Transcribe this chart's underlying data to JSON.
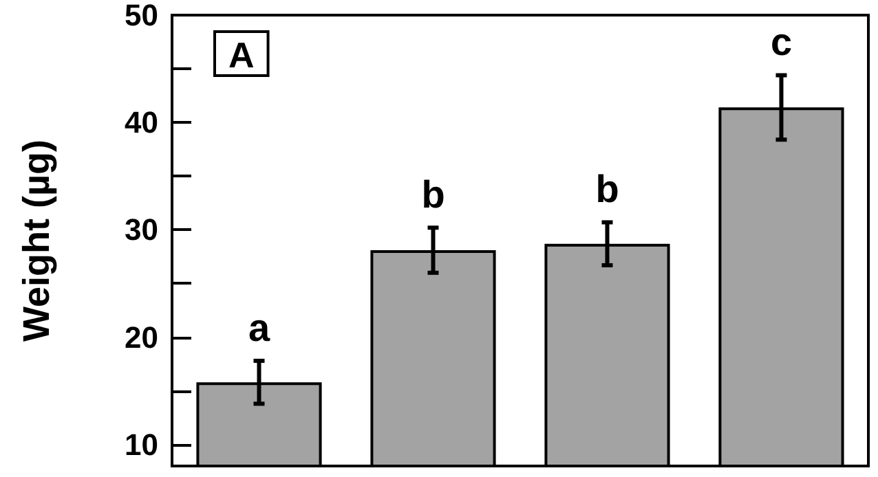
{
  "chart_data": {
    "type": "bar",
    "ylabel": "Weight (µg)",
    "categories": [
      null,
      null,
      null,
      null
    ],
    "color": "#a3a3a3",
    "values": [
      15.8,
      28.1,
      28.7,
      41.4
    ],
    "errors": [
      2.0,
      2.1,
      2.0,
      3.0
    ],
    "ylim": [
      8,
      50
    ],
    "yticks": [
      10,
      {
        "value": 15,
        "label": null
      },
      20,
      {
        "value": 25,
        "label": null
      },
      30,
      {
        "value": 35,
        "label": null
      },
      40,
      {
        "value": 45,
        "label": null
      },
      50
    ],
    "annotations": [
      "A",
      "a",
      "b",
      "b",
      "c"
    ],
    "grid": false
  }
}
